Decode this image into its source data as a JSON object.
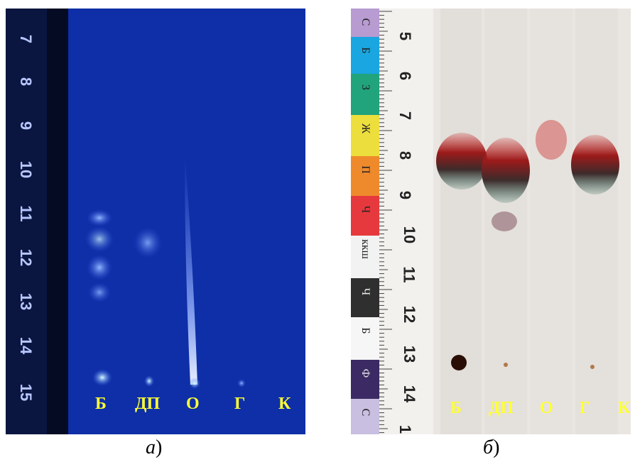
{
  "panel_a": {
    "scale_numbers": [
      "7",
      "8",
      "9",
      "10",
      "11",
      "12",
      "13",
      "14",
      "15"
    ],
    "lanes": [
      "Б",
      "ДП",
      "О",
      "Г",
      "К"
    ],
    "caption_letter": "а",
    "caption_paren": ")"
  },
  "panel_b": {
    "scale_numbers": [
      "5",
      "6",
      "7",
      "8",
      "9",
      "10",
      "11",
      "12",
      "13",
      "14",
      "1"
    ],
    "swatches": [
      {
        "label": "С",
        "color": "#b79bd1"
      },
      {
        "label": "Б",
        "color": "#1aa6e0"
      },
      {
        "label": "З",
        "color": "#21a37c"
      },
      {
        "label": "Ж",
        "color": "#ecde3c"
      },
      {
        "label": "П",
        "color": "#ef8a2c"
      },
      {
        "label": "Ч",
        "color": "#e6393e"
      },
      {
        "label": "ккш",
        "color": "#f2f2f2"
      },
      {
        "label": "Ч",
        "color": "#2f2f2f"
      },
      {
        "label": "Б",
        "color": "#f6f6f6"
      },
      {
        "label": "Ф",
        "color": "#3b2a63"
      },
      {
        "label": "С",
        "color": "#c9bfe0"
      }
    ],
    "lanes": [
      "Б",
      "ДП",
      "О",
      "Г",
      "К"
    ],
    "caption_letter": "б",
    "caption_paren": ")"
  }
}
